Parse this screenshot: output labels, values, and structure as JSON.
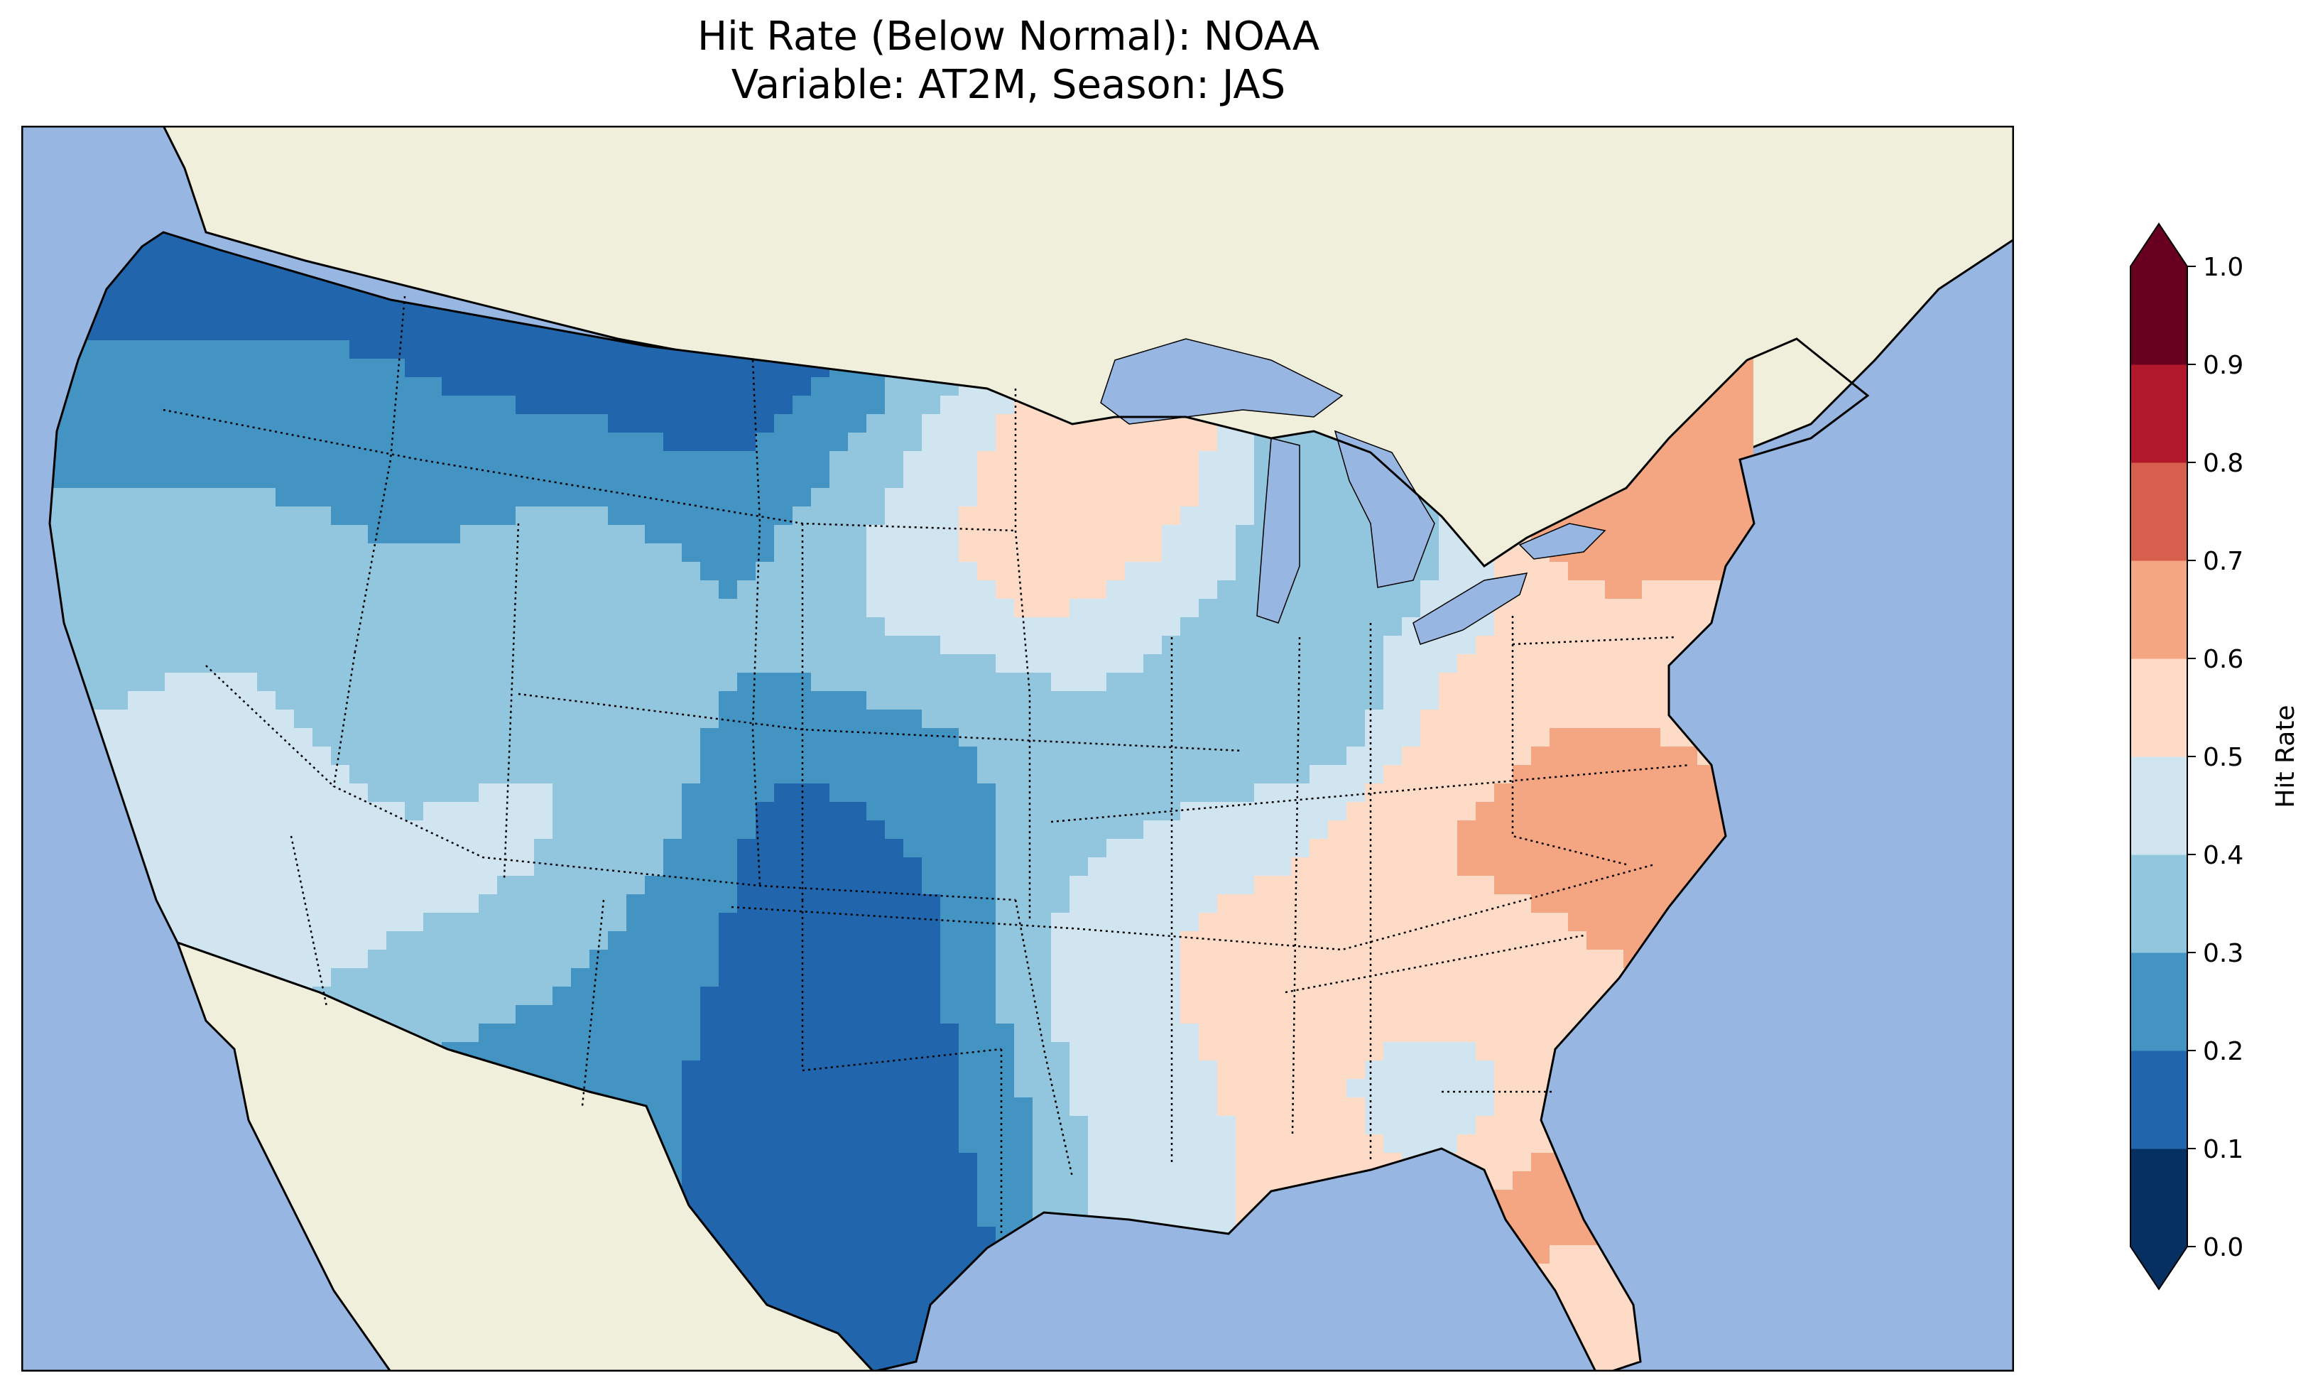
{
  "title": {
    "line1": "Hit Rate (Below Normal): NOAA",
    "line2": "Variable: AT2M, Season: JAS"
  },
  "colors": {
    "ocean": "#97b6e1",
    "land": "#efefdb",
    "lakes": "#97b6e1",
    "frame": "#000000"
  },
  "colorbar": {
    "label": "Hit Rate",
    "ticks": [
      "0.0",
      "0.1",
      "0.2",
      "0.3",
      "0.4",
      "0.5",
      "0.6",
      "0.7",
      "0.8",
      "0.9",
      "1.0"
    ],
    "levels": [
      0.0,
      0.1,
      0.2,
      0.3,
      0.4,
      0.5,
      0.6,
      0.7,
      0.8,
      0.9,
      1.0
    ],
    "bin_colors": [
      "#053061",
      "#2166ac",
      "#4393c3",
      "#92c5de",
      "#d1e5f0",
      "#fddbc7",
      "#f4a582",
      "#d6604d",
      "#b2182b",
      "#67001f"
    ],
    "extend_low_color": "#053061",
    "extend_high_color": "#67001f",
    "extend": "both",
    "colormap": "RdBu_r"
  }
}
